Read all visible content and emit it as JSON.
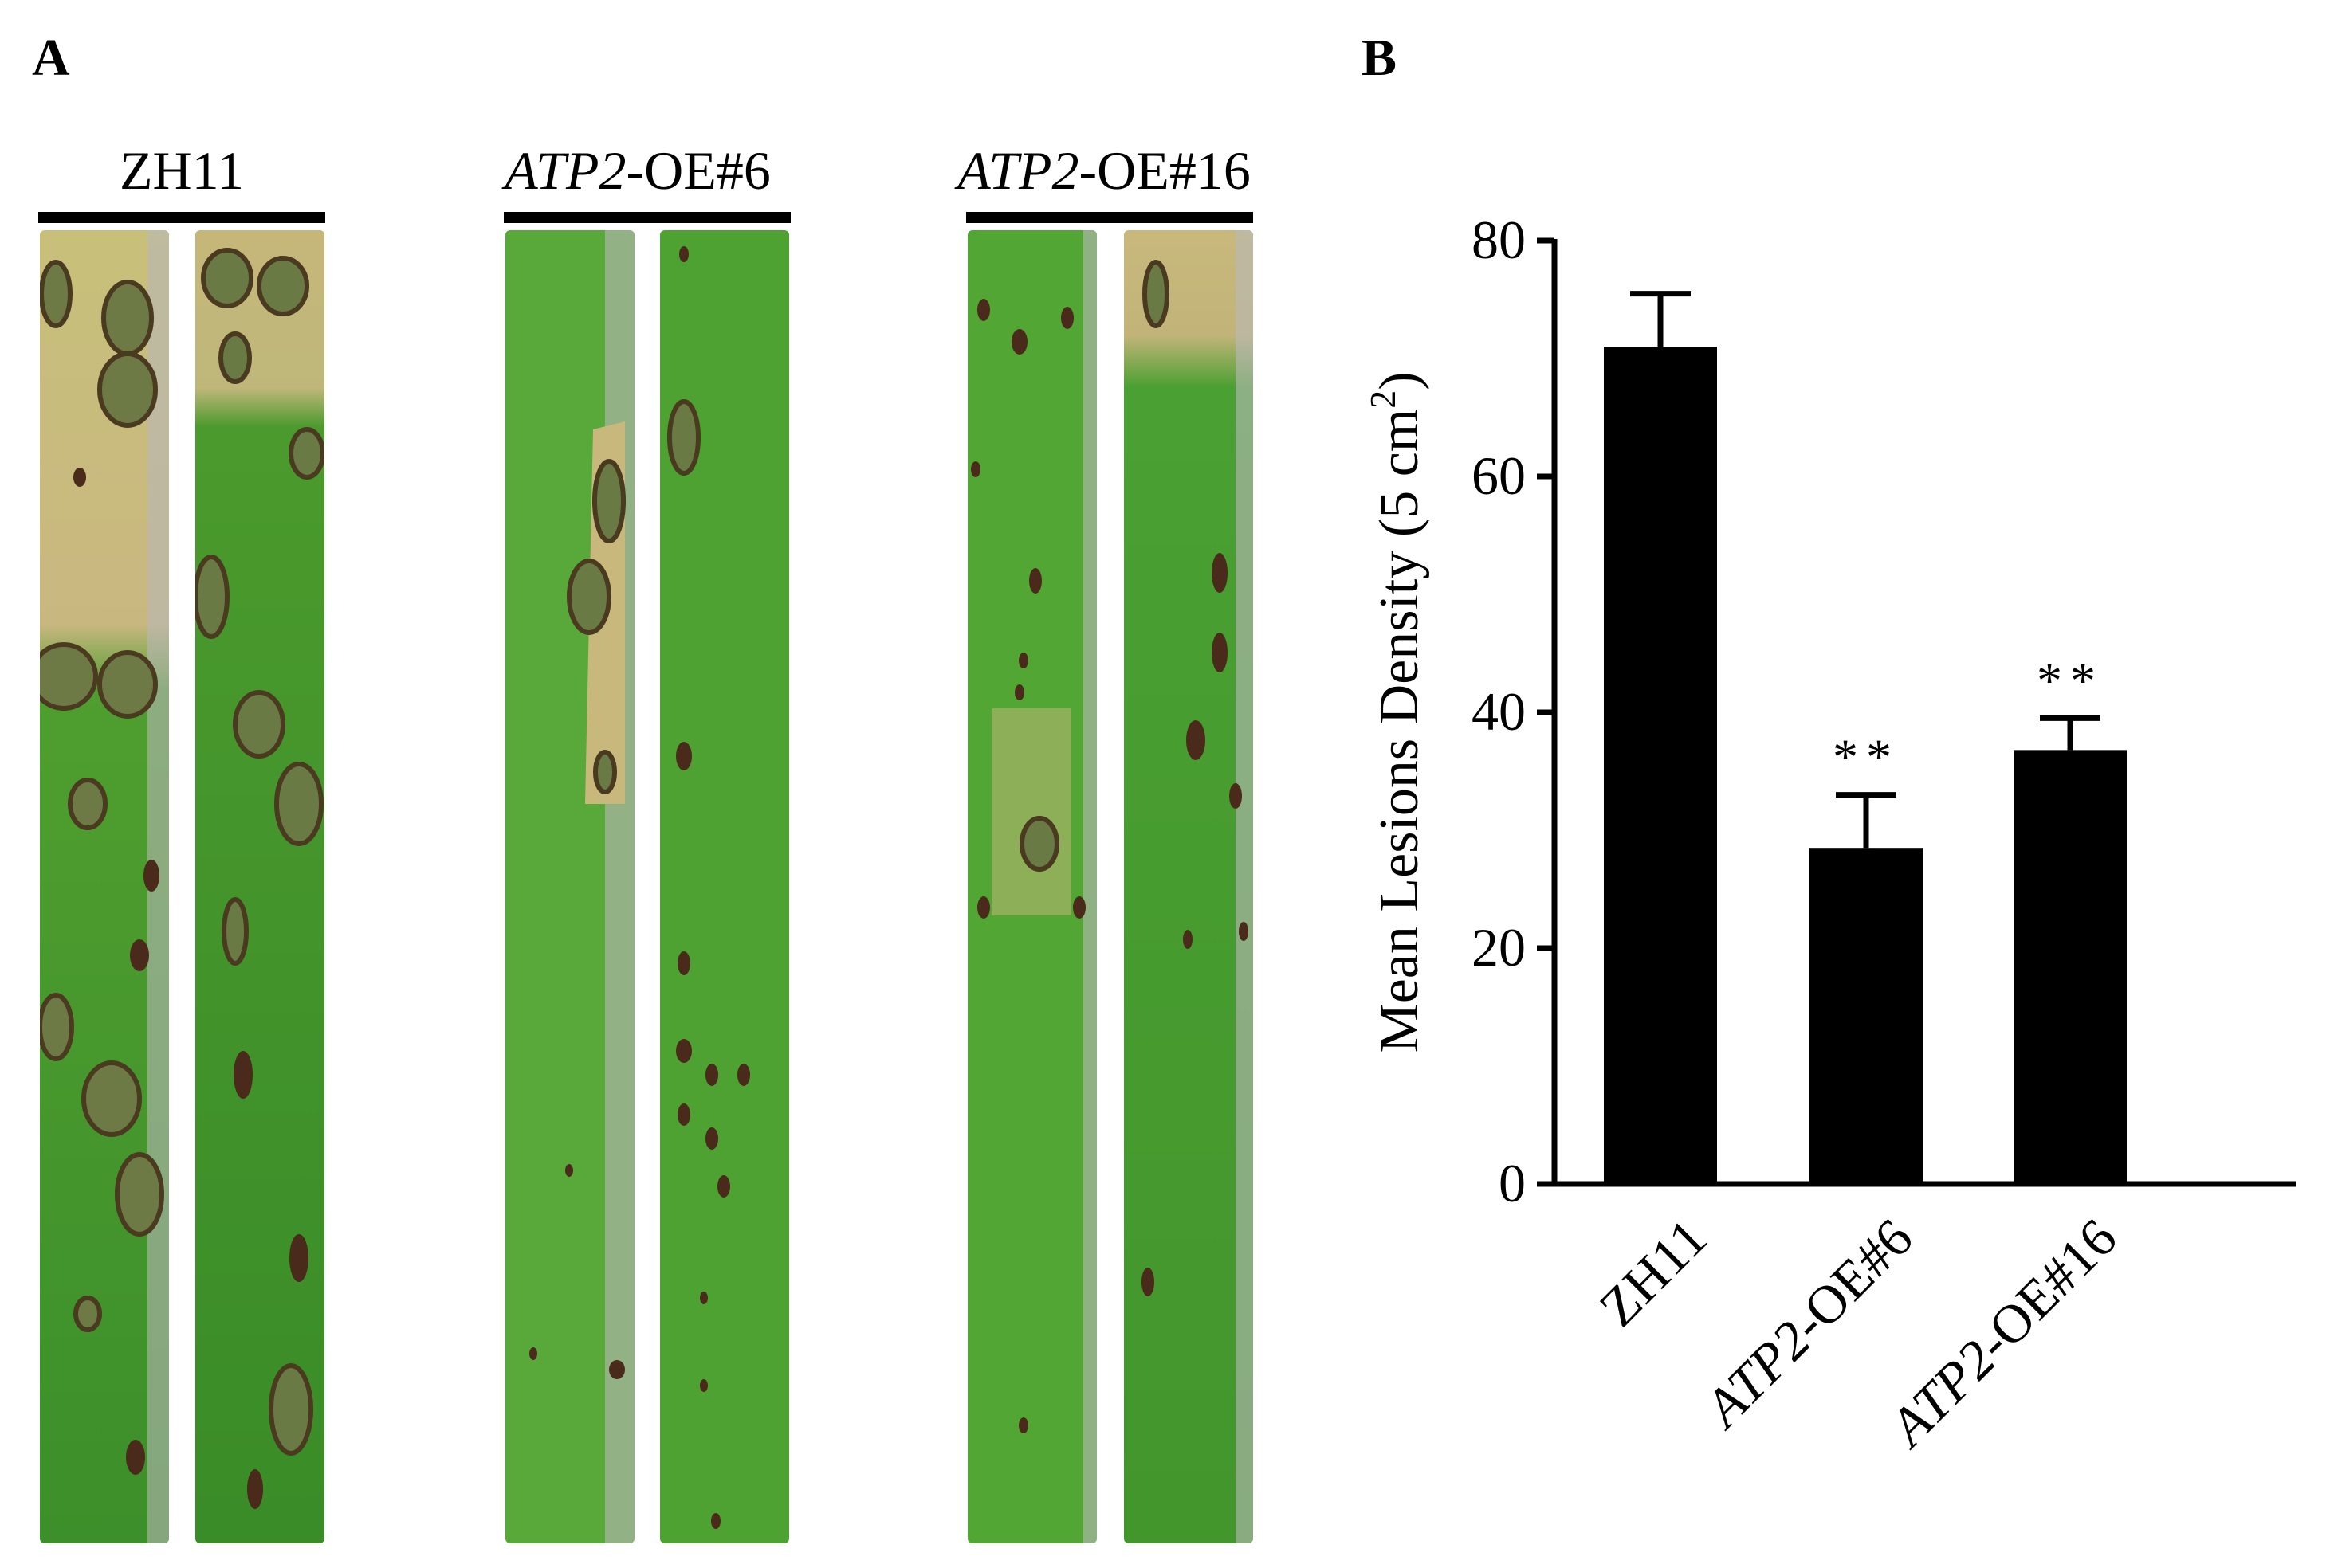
{
  "panels": {
    "a": "A",
    "b": "B"
  },
  "panel_a": {
    "groups": [
      {
        "label": "ZH11",
        "italic_part": "",
        "rest": "ZH11"
      },
      {
        "label": "ATP2-OE#6",
        "italic_part": "ATP2",
        "rest": "-OE#6"
      },
      {
        "label": "ATP2-OE#16",
        "italic_part": "ATP2",
        "rest": "-OE#16"
      }
    ],
    "leaf_icon": "leaf-photo"
  },
  "chart_data": {
    "type": "bar",
    "categories": [
      "ZH11",
      "ATP2-OE#6",
      "ATP2-OE#16"
    ],
    "category_italic_part": [
      "",
      "ATP2",
      "ATP2"
    ],
    "category_rest": [
      "ZH11",
      "-OE#6",
      "-OE#16"
    ],
    "values": [
      71,
      28.5,
      36.8
    ],
    "errors": [
      4.5,
      4.5,
      2.7
    ],
    "significance": [
      "",
      "**",
      "**"
    ],
    "ylabel": "Mean Lesions Density (5 cm²)",
    "ylabel_main": "Mean Lesions Density (5 cm",
    "ylabel_sup": "2",
    "ylabel_end": ")",
    "ylim": [
      0,
      80
    ],
    "yticks": [
      "0",
      "20",
      "40",
      "60",
      "80"
    ],
    "bar_color": "#000000",
    "grid": false
  }
}
